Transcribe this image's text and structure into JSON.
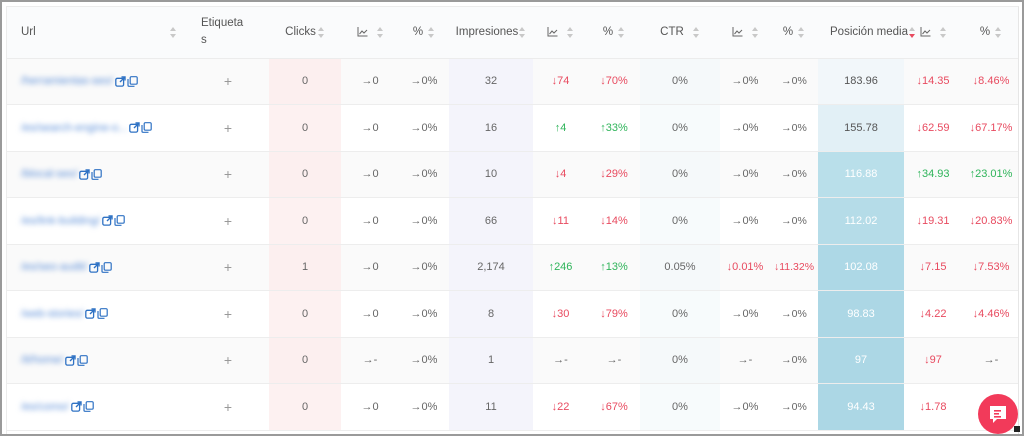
{
  "colors": {
    "accent_red": "#e84a5f",
    "accent_green": "#2fb45a",
    "link_blue": "#2f72c4",
    "fab": "#f23a5a",
    "clicks_col_bg": "#fdf1f1",
    "impr_col_bg": "#f4f4fb",
    "pos_heat_light": "#f2f7fa",
    "pos_heat_mid": "#e2f0f6",
    "pos_heat_dark": "#b7dde8",
    "pos_heat_darker": "#add8e6"
  },
  "table": {
    "headers": {
      "url": "Url",
      "tags_line1": "Etiqueta",
      "tags_line2": "s",
      "clicks": "Clicks",
      "clicks_pct": "%",
      "impressions": "Impresiones",
      "impressions_pct": "%",
      "ctr": "CTR",
      "ctr_pct": "%",
      "position": "Posición media",
      "position_pct": "%"
    },
    "add_tag_symbol": "+",
    "rows": [
      {
        "url": "/herramientas-seo/",
        "clicks": "0",
        "clicks_delta": "→0",
        "clicks_pct": "→0%",
        "impressions": "32",
        "impr_delta": "↓74",
        "impr_delta_dir": "down",
        "impr_pct": "↓70%",
        "impr_pct_dir": "down",
        "ctr": "0%",
        "ctr_delta": "→0%",
        "ctr_delta_dir": "neutral",
        "ctr_pct": "→0%",
        "ctr_pct_dir": "neutral",
        "position": "183.96",
        "pos_bg": "#f2f7fa",
        "pos_light": false,
        "pos_delta": "↓14.35",
        "pos_delta_dir": "down",
        "pos_pct": "↓8.46%",
        "pos_pct_dir": "down"
      },
      {
        "url": "/es/search-engine-o...",
        "clicks": "0",
        "clicks_delta": "→0",
        "clicks_pct": "→0%",
        "impressions": "16",
        "impr_delta": "↑4",
        "impr_delta_dir": "up",
        "impr_pct": "↑33%",
        "impr_pct_dir": "up",
        "ctr": "0%",
        "ctr_delta": "→0%",
        "ctr_delta_dir": "neutral",
        "ctr_pct": "→0%",
        "ctr_pct_dir": "neutral",
        "position": "155.78",
        "pos_bg": "#e2f0f6",
        "pos_light": false,
        "pos_delta": "↓62.59",
        "pos_delta_dir": "down",
        "pos_pct": "↓67.17%",
        "pos_pct_dir": "down"
      },
      {
        "url": "/blocal-seo/",
        "clicks": "0",
        "clicks_delta": "→0",
        "clicks_pct": "→0%",
        "impressions": "10",
        "impr_delta": "↓4",
        "impr_delta_dir": "down",
        "impr_pct": "↓29%",
        "impr_pct_dir": "down",
        "ctr": "0%",
        "ctr_delta": "→0%",
        "ctr_delta_dir": "neutral",
        "ctr_pct": "→0%",
        "ctr_pct_dir": "neutral",
        "position": "116.88",
        "pos_bg": "#b9dfea",
        "pos_light": true,
        "pos_delta": "↑34.93",
        "pos_delta_dir": "up",
        "pos_pct": "↑23.01%",
        "pos_pct_dir": "up"
      },
      {
        "url": "/es/link-building/",
        "clicks": "0",
        "clicks_delta": "→0",
        "clicks_pct": "→0%",
        "impressions": "66",
        "impr_delta": "↓11",
        "impr_delta_dir": "down",
        "impr_pct": "↓14%",
        "impr_pct_dir": "down",
        "ctr": "0%",
        "ctr_delta": "→0%",
        "ctr_delta_dir": "neutral",
        "ctr_pct": "→0%",
        "ctr_pct_dir": "neutral",
        "position": "112.02",
        "pos_bg": "#b5dce8",
        "pos_light": true,
        "pos_delta": "↓19.31",
        "pos_delta_dir": "down",
        "pos_pct": "↓20.83%",
        "pos_pct_dir": "down"
      },
      {
        "url": "/es/seo-audit/",
        "clicks": "1",
        "clicks_delta": "→0",
        "clicks_pct": "→0%",
        "impressions": "2,174",
        "impr_delta": "↑246",
        "impr_delta_dir": "up",
        "impr_pct": "↑13%",
        "impr_pct_dir": "up",
        "ctr": "0.05%",
        "ctr_delta": "↓0.01%",
        "ctr_delta_dir": "down",
        "ctr_pct": "↓11.32%",
        "ctr_pct_dir": "down",
        "position": "102.08",
        "pos_bg": "#add8e6",
        "pos_light": true,
        "pos_delta": "↓7.15",
        "pos_delta_dir": "down",
        "pos_pct": "↓7.53%",
        "pos_pct_dir": "down"
      },
      {
        "url": "/web-stories/",
        "clicks": "0",
        "clicks_delta": "→0",
        "clicks_pct": "→0%",
        "impressions": "8",
        "impr_delta": "↓30",
        "impr_delta_dir": "down",
        "impr_pct": "↓79%",
        "impr_pct_dir": "down",
        "ctr": "0%",
        "ctr_delta": "→0%",
        "ctr_delta_dir": "neutral",
        "ctr_pct": "→0%",
        "ctr_pct_dir": "neutral",
        "position": "98.83",
        "pos_bg": "#acd7e5",
        "pos_light": true,
        "pos_delta": "↓4.22",
        "pos_delta_dir": "down",
        "pos_pct": "↓4.46%",
        "pos_pct_dir": "down"
      },
      {
        "url": "/it/home/",
        "clicks": "0",
        "clicks_delta": "→-",
        "clicks_pct": "→0%",
        "impressions": "1",
        "impr_delta": "→-",
        "impr_delta_dir": "neutral",
        "impr_pct": "→-",
        "impr_pct_dir": "neutral",
        "ctr": "0%",
        "ctr_delta": "→-",
        "ctr_delta_dir": "neutral",
        "ctr_pct": "→0%",
        "ctr_pct_dir": "neutral",
        "position": "97",
        "pos_bg": "#acd7e5",
        "pos_light": true,
        "pos_delta": "↓97",
        "pos_delta_dir": "down",
        "pos_pct": "→-",
        "pos_pct_dir": "neutral"
      },
      {
        "url": "/es/como/",
        "clicks": "0",
        "clicks_delta": "→0",
        "clicks_pct": "→0%",
        "impressions": "11",
        "impr_delta": "↓22",
        "impr_delta_dir": "down",
        "impr_pct": "↓67%",
        "impr_pct_dir": "down",
        "ctr": "0%",
        "ctr_delta": "→0%",
        "ctr_delta_dir": "neutral",
        "ctr_pct": "→0%",
        "ctr_pct_dir": "neutral",
        "position": "94.43",
        "pos_bg": "#acd7e5",
        "pos_light": true,
        "pos_delta": "↓1.78",
        "pos_delta_dir": "down",
        "pos_pct": "↓",
        "pos_pct_dir": "down"
      }
    ]
  },
  "icons": {
    "open_link": "external-link-icon",
    "copy": "copy-icon",
    "trend": "line-chart-icon",
    "sort": "sort-icon",
    "chat": "chat-icon"
  }
}
